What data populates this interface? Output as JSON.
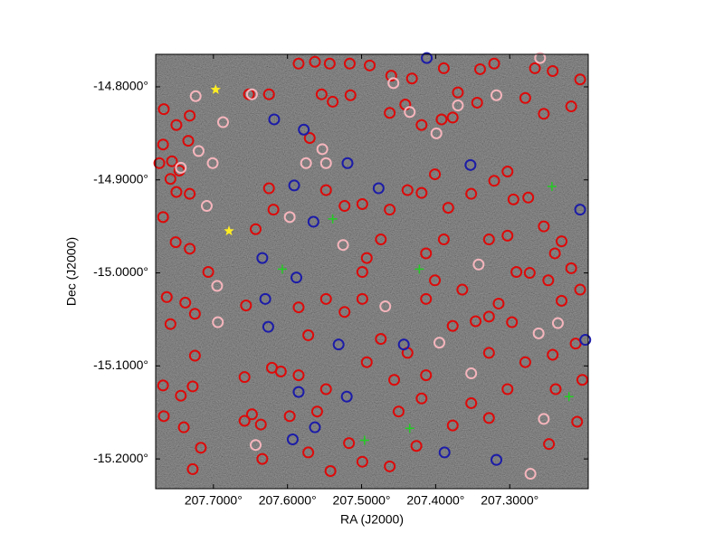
{
  "chart_data": {
    "type": "scatter",
    "xlabel": "RA (J2000)",
    "ylabel": "Dec (J2000)",
    "xlim": [
      207.778,
      207.194
    ],
    "ylim": [
      -15.232,
      -14.765
    ],
    "xticks": [
      {
        "value": 207.7,
        "label": "207.7000°"
      },
      {
        "value": 207.6,
        "label": "207.6000°"
      },
      {
        "value": 207.5,
        "label": "207.5000°"
      },
      {
        "value": 207.4,
        "label": "207.4000°"
      },
      {
        "value": 207.3,
        "label": "207.3000°"
      }
    ],
    "yticks": [
      {
        "value": -14.8,
        "label": "-14.8000°"
      },
      {
        "value": -14.9,
        "label": "-14.9000°"
      },
      {
        "value": -15.0,
        "label": "-15.0000°"
      },
      {
        "value": -15.1,
        "label": "-15.1000°"
      },
      {
        "value": -15.2,
        "label": "-15.2000°"
      }
    ],
    "series": [
      {
        "color": "#dd0a0a",
        "marker": "circle",
        "x": [
          207.585,
          207.563,
          207.543,
          207.516,
          207.489,
          207.46,
          207.432,
          207.389,
          207.34,
          207.321,
          207.266,
          207.242,
          207.205,
          207.652,
          207.625,
          207.554,
          207.539,
          207.515,
          207.462,
          207.441,
          207.419,
          207.392,
          207.377,
          207.37,
          207.344,
          207.279,
          207.254,
          207.217,
          207.767,
          207.75,
          207.732,
          207.768,
          207.773,
          207.756,
          207.746,
          207.734,
          207.758,
          207.75,
          207.732,
          207.768,
          207.751,
          207.732,
          207.707,
          207.763,
          207.738,
          207.725,
          207.758,
          207.725,
          207.768,
          207.744,
          207.728,
          207.767,
          207.74,
          207.728,
          207.717,
          207.658,
          207.648,
          207.636,
          207.634,
          207.621,
          207.658,
          207.656,
          207.643,
          207.619,
          207.625,
          207.57,
          207.548,
          207.523,
          207.499,
          207.462,
          207.474,
          207.493,
          207.438,
          207.419,
          207.401,
          207.383,
          207.352,
          207.321,
          207.303,
          207.295,
          207.275,
          207.254,
          207.23,
          207.239,
          207.217,
          207.205,
          207.248,
          207.23,
          207.273,
          207.291,
          207.315,
          207.328,
          207.297,
          207.242,
          207.211,
          207.202,
          207.238,
          207.247,
          207.209,
          207.279,
          207.303,
          207.352,
          207.328,
          207.377,
          207.419,
          207.45,
          207.426,
          207.462,
          207.499,
          207.517,
          207.542,
          207.572,
          207.597,
          207.56,
          207.548,
          207.585,
          207.609,
          207.572,
          207.585,
          207.548,
          207.523,
          207.499,
          207.474,
          207.493,
          207.438,
          207.413,
          207.456,
          207.377,
          207.346,
          207.328,
          207.413,
          207.401,
          207.364,
          207.303,
          207.328,
          207.389,
          207.413,
          207.499
        ],
        "values": [
          -14.775,
          -14.773,
          -14.775,
          -14.775,
          -14.777,
          -14.788,
          -14.791,
          -14.78,
          -14.781,
          -14.775,
          -14.78,
          -14.783,
          -14.792,
          -14.808,
          -14.808,
          -14.808,
          -14.816,
          -14.809,
          -14.828,
          -14.819,
          -14.841,
          -14.835,
          -14.833,
          -14.806,
          -14.817,
          -14.812,
          -14.829,
          -14.821,
          -14.824,
          -14.841,
          -14.831,
          -14.862,
          -14.882,
          -14.88,
          -14.89,
          -14.858,
          -14.899,
          -14.913,
          -14.915,
          -14.94,
          -14.967,
          -14.974,
          -14.999,
          -15.026,
          -15.032,
          -15.044,
          -15.055,
          -15.089,
          -15.121,
          -15.132,
          -15.122,
          -15.154,
          -15.166,
          -15.211,
          -15.188,
          -15.159,
          -15.152,
          -15.163,
          -15.2,
          -15.102,
          -15.112,
          -15.035,
          -14.953,
          -14.932,
          -14.909,
          -14.855,
          -14.911,
          -14.928,
          -14.926,
          -14.932,
          -14.964,
          -14.984,
          -14.911,
          -14.914,
          -14.894,
          -14.93,
          -14.915,
          -14.901,
          -14.891,
          -14.921,
          -14.919,
          -14.95,
          -14.966,
          -14.979,
          -14.995,
          -15.018,
          -15.008,
          -15.03,
          -15.0,
          -14.999,
          -15.033,
          -15.047,
          -15.053,
          -15.088,
          -15.076,
          -15.115,
          -15.125,
          -15.184,
          -15.16,
          -15.096,
          -15.125,
          -15.14,
          -15.156,
          -15.164,
          -15.135,
          -15.149,
          -15.186,
          -15.208,
          -15.203,
          -15.183,
          -15.213,
          -15.193,
          -15.154,
          -15.149,
          -15.125,
          -15.11,
          -15.106,
          -15.067,
          -15.037,
          -15.028,
          -15.042,
          -15.028,
          -15.071,
          -15.096,
          -15.086,
          -15.11,
          -15.115,
          -15.057,
          -15.052,
          -15.086,
          -15.028,
          -15.008,
          -15.018,
          -14.96,
          -14.964,
          -14.964,
          -14.979,
          -14.999
        ]
      },
      {
        "color": "#f5b5bc",
        "marker": "circle",
        "x": [
          207.724,
          207.687,
          207.72,
          207.701,
          207.744,
          207.709,
          207.695,
          207.694,
          207.648,
          207.575,
          207.548,
          207.553,
          207.457,
          207.435,
          207.399,
          207.37,
          207.318,
          207.259,
          207.342,
          207.395,
          207.352,
          207.261,
          207.235,
          207.468,
          207.643,
          207.597,
          207.525,
          207.254,
          207.272
        ],
        "values": [
          -14.81,
          -14.838,
          -14.869,
          -14.882,
          -14.887,
          -14.928,
          -15.014,
          -15.053,
          -14.808,
          -14.882,
          -14.882,
          -14.867,
          -14.796,
          -14.827,
          -14.85,
          -14.82,
          -14.809,
          -14.769,
          -14.991,
          -15.075,
          -15.108,
          -15.065,
          -15.054,
          -15.036,
          -15.185,
          -14.94,
          -14.97,
          -15.157,
          -15.216
        ]
      },
      {
        "color": "#1c1ca8",
        "marker": "circle",
        "x": [
          207.618,
          207.578,
          207.519,
          207.591,
          207.565,
          207.634,
          207.588,
          207.63,
          207.626,
          207.531,
          207.443,
          207.585,
          207.52,
          207.593,
          207.563,
          207.388,
          207.318,
          207.353,
          207.477,
          207.205,
          207.412,
          207.198
        ],
        "values": [
          -14.835,
          -14.846,
          -14.882,
          -14.906,
          -14.945,
          -14.984,
          -15.005,
          -15.028,
          -15.058,
          -15.077,
          -15.077,
          -15.128,
          -15.133,
          -15.179,
          -15.166,
          -15.193,
          -15.201,
          -14.884,
          -14.909,
          -14.932,
          -14.769,
          -15.072
        ]
      },
      {
        "color": "#ffee22",
        "marker": "star",
        "x": [
          207.697,
          207.679
        ],
        "values": [
          -14.803,
          -14.955
        ]
      },
      {
        "color": "#22cc22",
        "marker": "plus",
        "x": [
          207.243,
          207.435,
          207.496,
          207.607,
          207.422,
          207.22,
          207.539
        ],
        "values": [
          -14.907,
          -15.167,
          -15.18,
          -14.996,
          -14.996,
          -15.133,
          -14.942
        ]
      }
    ]
  }
}
